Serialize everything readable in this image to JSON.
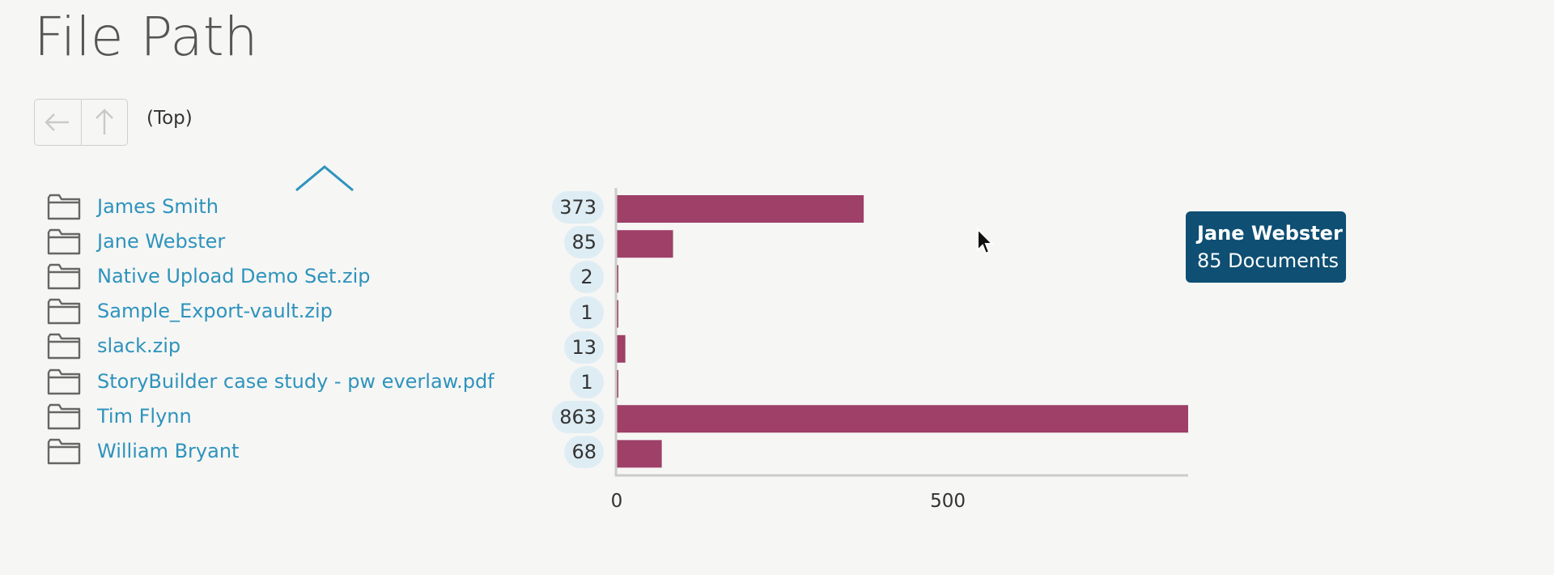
{
  "header": {
    "title": "File Path"
  },
  "nav": {
    "back_icon": "arrow-left-icon",
    "up_icon": "arrow-up-icon",
    "breadcrumb": "(Top)"
  },
  "folders": [
    {
      "name": "James Smith",
      "count": "373"
    },
    {
      "name": "Jane Webster",
      "count": "85"
    },
    {
      "name": "Native Upload Demo Set.zip",
      "count": "2"
    },
    {
      "name": "Sample_Export-vault.zip",
      "count": "1"
    },
    {
      "name": "slack.zip",
      "count": "13"
    },
    {
      "name": "StoryBuilder case study - pw everlaw.pdf",
      "count": "1"
    },
    {
      "name": "Tim Flynn",
      "count": "863"
    },
    {
      "name": "William Bryant",
      "count": "68"
    }
  ],
  "chart_data": {
    "type": "bar",
    "orientation": "horizontal",
    "categories": [
      "James Smith",
      "Jane Webster",
      "Native Upload Demo Set.zip",
      "Sample_Export-vault.zip",
      "slack.zip",
      "StoryBuilder case study - pw everlaw.pdf",
      "Tim Flynn",
      "William Bryant"
    ],
    "values": [
      373,
      85,
      2,
      1,
      13,
      1,
      863,
      68
    ],
    "xlim": [
      0,
      863
    ],
    "xticks": [
      "0",
      "500"
    ],
    "grid": false,
    "bar_color": "#9e4068"
  },
  "tooltip": {
    "title": "Jane Webster",
    "subtitle": "85 Documents"
  },
  "colors": {
    "link": "#2e93bd",
    "bar": "#9e4068",
    "badge": "#deedf4",
    "tooltip_bg": "#0e4f73"
  }
}
